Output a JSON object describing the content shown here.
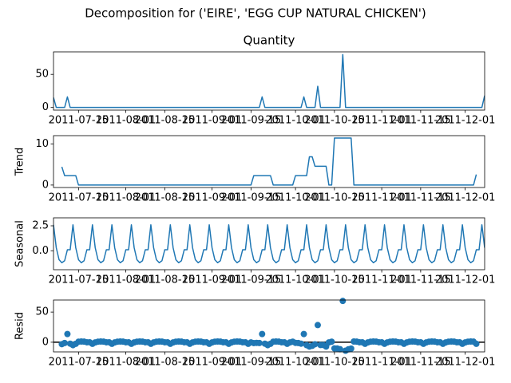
{
  "chart_data": {
    "type": "line",
    "title": "Decomposition for ('EIRE', 'EGG CUP NATURAL CHICKEN')",
    "x": [
      "2011-07-06",
      "2011-07-07",
      "2011-07-08",
      "2011-07-09",
      "2011-07-10",
      "2011-07-11",
      "2011-07-12",
      "2011-07-13",
      "2011-07-14",
      "2011-07-15",
      "2011-07-16",
      "2011-07-17",
      "2011-07-18",
      "2011-07-19",
      "2011-07-20",
      "2011-07-21",
      "2011-07-22",
      "2011-07-23",
      "2011-07-24",
      "2011-07-25",
      "2011-07-26",
      "2011-07-27",
      "2011-07-28",
      "2011-07-29",
      "2011-07-30",
      "2011-07-31",
      "2011-08-01",
      "2011-08-02",
      "2011-08-03",
      "2011-08-04",
      "2011-08-05",
      "2011-08-06",
      "2011-08-07",
      "2011-08-08",
      "2011-08-09",
      "2011-08-10",
      "2011-08-11",
      "2011-08-12",
      "2011-08-13",
      "2011-08-14",
      "2011-08-15",
      "2011-08-16",
      "2011-08-17",
      "2011-08-18",
      "2011-08-19",
      "2011-08-20",
      "2011-08-21",
      "2011-08-22",
      "2011-08-23",
      "2011-08-24",
      "2011-08-25",
      "2011-08-26",
      "2011-08-27",
      "2011-08-28",
      "2011-08-29",
      "2011-08-30",
      "2011-08-31",
      "2011-09-01",
      "2011-09-02",
      "2011-09-03",
      "2011-09-04",
      "2011-09-05",
      "2011-09-06",
      "2011-09-07",
      "2011-09-08",
      "2011-09-09",
      "2011-09-10",
      "2011-09-11",
      "2011-09-12",
      "2011-09-13",
      "2011-09-14",
      "2011-09-15",
      "2011-09-16",
      "2011-09-17",
      "2011-09-18",
      "2011-09-19",
      "2011-09-20",
      "2011-09-21",
      "2011-09-22",
      "2011-09-23",
      "2011-09-24",
      "2011-09-25",
      "2011-09-26",
      "2011-09-27",
      "2011-09-28",
      "2011-09-29",
      "2011-09-30",
      "2011-10-01",
      "2011-10-02",
      "2011-10-03",
      "2011-10-04",
      "2011-10-05",
      "2011-10-06",
      "2011-10-07",
      "2011-10-08",
      "2011-10-09",
      "2011-10-10",
      "2011-10-11",
      "2011-10-12",
      "2011-10-13",
      "2011-10-14",
      "2011-10-15",
      "2011-10-16",
      "2011-10-17",
      "2011-10-18",
      "2011-10-19",
      "2011-10-20",
      "2011-10-21",
      "2011-10-22",
      "2011-10-23",
      "2011-10-24",
      "2011-10-25",
      "2011-10-26",
      "2011-10-27",
      "2011-10-28",
      "2011-10-29",
      "2011-10-30",
      "2011-10-31",
      "2011-11-01",
      "2011-11-02",
      "2011-11-03",
      "2011-11-04",
      "2011-11-05",
      "2011-11-06",
      "2011-11-07",
      "2011-11-08",
      "2011-11-09",
      "2011-11-10",
      "2011-11-11",
      "2011-11-12",
      "2011-11-13",
      "2011-11-14",
      "2011-11-15",
      "2011-11-16",
      "2011-11-17",
      "2011-11-18",
      "2011-11-19",
      "2011-11-20",
      "2011-11-21",
      "2011-11-22",
      "2011-11-23",
      "2011-11-24",
      "2011-11-25",
      "2011-11-26",
      "2011-11-27",
      "2011-11-28",
      "2011-11-29",
      "2011-11-30",
      "2011-12-01",
      "2011-12-02",
      "2011-12-03",
      "2011-12-04",
      "2011-12-05",
      "2011-12-06",
      "2011-12-07",
      "2011-12-08"
    ],
    "xlim": [
      "2011-07-06",
      "2011-12-08"
    ],
    "xticks": [
      "2011-07-15",
      "2011-08-01",
      "2011-08-15",
      "2011-09-01",
      "2011-09-15",
      "2011-10-01",
      "2011-10-15",
      "2011-11-01",
      "2011-11-15",
      "2011-12-01"
    ],
    "panels": [
      {
        "type": "line",
        "title": "Quantity",
        "color": "#1f77b4",
        "ylim": [
          -4,
          84
        ],
        "yticks": [
          0,
          50
        ],
        "values": [
          15,
          0,
          0,
          0,
          0,
          16,
          0,
          0,
          0,
          0,
          0,
          0,
          0,
          0,
          0,
          0,
          0,
          0,
          0,
          0,
          0,
          0,
          0,
          0,
          0,
          0,
          0,
          0,
          0,
          0,
          0,
          0,
          0,
          0,
          0,
          0,
          0,
          0,
          0,
          0,
          0,
          0,
          0,
          0,
          0,
          0,
          0,
          0,
          0,
          0,
          0,
          0,
          0,
          0,
          0,
          0,
          0,
          0,
          0,
          0,
          0,
          0,
          0,
          0,
          0,
          0,
          0,
          0,
          0,
          0,
          0,
          0,
          0,
          0,
          0,
          16,
          0,
          0,
          0,
          0,
          0,
          0,
          0,
          0,
          0,
          0,
          0,
          0,
          0,
          0,
          16,
          0,
          0,
          0,
          0,
          32,
          0,
          0,
          0,
          0,
          0,
          0,
          0,
          0,
          80,
          0,
          0,
          0,
          0,
          0,
          0,
          0,
          0,
          0,
          0,
          0,
          0,
          0,
          0,
          0,
          0,
          0,
          0,
          0,
          0,
          0,
          0,
          0,
          0,
          0,
          0,
          0,
          0,
          0,
          0,
          0,
          0,
          0,
          0,
          0,
          0,
          0,
          0,
          0,
          0,
          0,
          0,
          0,
          0,
          0,
          0,
          0,
          0,
          0,
          0,
          18
        ]
      },
      {
        "type": "line",
        "ylabel": "Trend",
        "color": "#1f77b4",
        "ylim": [
          -0.6,
          12
        ],
        "yticks": [
          0,
          10
        ],
        "values": [
          null,
          null,
          null,
          4.43,
          2.29,
          2.29,
          2.29,
          2.29,
          2.29,
          0,
          0,
          0,
          0,
          0,
          0,
          0,
          0,
          0,
          0,
          0,
          0,
          0,
          0,
          0,
          0,
          0,
          0,
          0,
          0,
          0,
          0,
          0,
          0,
          0,
          0,
          0,
          0,
          0,
          0,
          0,
          0,
          0,
          0,
          0,
          0,
          0,
          0,
          0,
          0,
          0,
          0,
          0,
          0,
          0,
          0,
          0,
          0,
          0,
          0,
          0,
          0,
          0,
          0,
          0,
          0,
          0,
          0,
          0,
          0,
          0,
          0,
          0,
          2.29,
          2.29,
          2.29,
          2.29,
          2.29,
          2.29,
          2.29,
          0,
          0,
          0,
          0,
          0,
          0,
          0,
          0,
          2.29,
          2.29,
          2.29,
          2.29,
          2.29,
          6.86,
          6.86,
          4.57,
          4.57,
          4.57,
          4.57,
          4.57,
          0,
          0,
          11.43,
          11.43,
          11.43,
          11.43,
          11.43,
          11.43,
          11.43,
          0,
          0,
          0,
          0,
          0,
          0,
          0,
          0,
          0,
          0,
          0,
          0,
          0,
          0,
          0,
          0,
          0,
          0,
          0,
          0,
          0,
          0,
          0,
          0,
          0,
          0,
          0,
          0,
          0,
          0,
          0,
          0,
          0,
          0,
          0,
          0,
          0,
          0,
          0,
          0,
          0,
          0,
          0,
          0,
          2.57,
          null,
          null,
          null
        ]
      },
      {
        "type": "line",
        "ylabel": "Seasonal",
        "color": "#1f77b4",
        "ylim": [
          -1.9,
          3.3
        ],
        "yticks": [
          {
            "value": 2.5,
            "label": "2.5"
          },
          {
            "value": 0,
            "label": "0.0"
          }
        ],
        "values": [
          2.6,
          0.3,
          -0.9,
          -1.2,
          -1.0,
          0.1,
          0.1,
          2.6,
          0.3,
          -0.9,
          -1.2,
          -1.0,
          0.1,
          0.1,
          2.6,
          0.3,
          -0.9,
          -1.2,
          -1.0,
          0.1,
          0.1,
          2.6,
          0.3,
          -0.9,
          -1.2,
          -1.0,
          0.1,
          0.1,
          2.6,
          0.3,
          -0.9,
          -1.2,
          -1.0,
          0.1,
          0.1,
          2.6,
          0.3,
          -0.9,
          -1.2,
          -1.0,
          0.1,
          0.1,
          2.6,
          0.3,
          -0.9,
          -1.2,
          -1.0,
          0.1,
          0.1,
          2.6,
          0.3,
          -0.9,
          -1.2,
          -1.0,
          0.1,
          0.1,
          2.6,
          0.3,
          -0.9,
          -1.2,
          -1.0,
          0.1,
          0.1,
          2.6,
          0.3,
          -0.9,
          -1.2,
          -1.0,
          0.1,
          0.1,
          2.6,
          0.3,
          -0.9,
          -1.2,
          -1.0,
          0.1,
          0.1,
          2.6,
          0.3,
          -0.9,
          -1.2,
          -1.0,
          0.1,
          0.1,
          2.6,
          0.3,
          -0.9,
          -1.2,
          -1.0,
          0.1,
          0.1,
          2.6,
          0.3,
          -0.9,
          -1.2,
          -1.0,
          0.1,
          0.1,
          2.6,
          0.3,
          -0.9,
          -1.2,
          -1.0,
          0.1,
          0.1,
          2.6,
          0.3,
          -0.9,
          -1.2,
          -1.0,
          0.1,
          0.1,
          2.6,
          0.3,
          -0.9,
          -1.2,
          -1.0,
          0.1,
          0.1,
          2.6,
          0.3,
          -0.9,
          -1.2,
          -1.0,
          0.1,
          0.1,
          2.6,
          0.3,
          -0.9,
          -1.2,
          -1.0,
          0.1,
          0.1,
          2.6,
          0.3,
          -0.9,
          -1.2,
          -1.0,
          0.1,
          0.1,
          2.6,
          0.3,
          -0.9,
          -1.2,
          -1.0,
          0.1,
          0.1,
          2.6,
          0.3,
          -0.9,
          -1.2,
          -1.0,
          0.1,
          0.1,
          2.6,
          0.3
        ]
      },
      {
        "type": "scatter",
        "ylabel": "Resid",
        "color": "#1f77b4",
        "ylim": [
          -16,
          70
        ],
        "yticks": [
          0,
          50
        ],
        "baseline": 0,
        "values": [
          null,
          null,
          null,
          -3.23,
          -1.29,
          13.61,
          -2.39,
          -4.89,
          -2.59,
          0.9,
          1.2,
          1.0,
          -0.1,
          -0.1,
          -2.6,
          -0.3,
          0.9,
          1.2,
          1.0,
          -0.1,
          -0.1,
          -2.6,
          -0.3,
          0.9,
          1.2,
          1.0,
          -0.1,
          -0.1,
          -2.6,
          -0.3,
          0.9,
          1.2,
          1.0,
          -0.1,
          -0.1,
          -2.6,
          -0.3,
          0.9,
          1.2,
          1.0,
          -0.1,
          -0.1,
          -2.6,
          -0.3,
          0.9,
          1.2,
          1.0,
          -0.1,
          -0.1,
          -2.6,
          -0.3,
          0.9,
          1.2,
          1.0,
          -0.1,
          -0.1,
          -2.6,
          -0.3,
          0.9,
          1.2,
          1.0,
          -0.1,
          -0.1,
          -2.6,
          -0.3,
          0.9,
          1.2,
          1.0,
          -0.1,
          -0.1,
          -2.6,
          -0.3,
          -1.39,
          -1.09,
          -1.29,
          13.61,
          -2.39,
          -4.89,
          -2.59,
          0.9,
          1.2,
          1.0,
          -0.1,
          -0.1,
          -2.6,
          -0.3,
          0.9,
          -1.09,
          -1.29,
          -2.39,
          13.61,
          -4.89,
          -7.16,
          -5.96,
          -3.37,
          28.43,
          -4.67,
          -4.67,
          -7.17,
          -0.3,
          0.9,
          -10.23,
          -10.43,
          -11.53,
          68.47,
          -14.03,
          -11.73,
          -10.53,
          1.2,
          1.0,
          -0.1,
          -0.1,
          -2.6,
          -0.3,
          0.9,
          1.2,
          1.0,
          -0.1,
          -0.1,
          -2.6,
          -0.3,
          0.9,
          1.2,
          1.0,
          -0.1,
          -0.1,
          -2.6,
          -0.3,
          0.9,
          1.2,
          1.0,
          -0.1,
          -0.1,
          -2.6,
          -0.3,
          0.9,
          1.2,
          1.0,
          -0.1,
          -0.1,
          -2.6,
          -0.3,
          0.9,
          1.2,
          1.0,
          -0.1,
          -0.1,
          -2.6,
          -0.3,
          0.9,
          1.2,
          1.0,
          -2.67,
          null,
          null,
          null
        ]
      }
    ]
  }
}
